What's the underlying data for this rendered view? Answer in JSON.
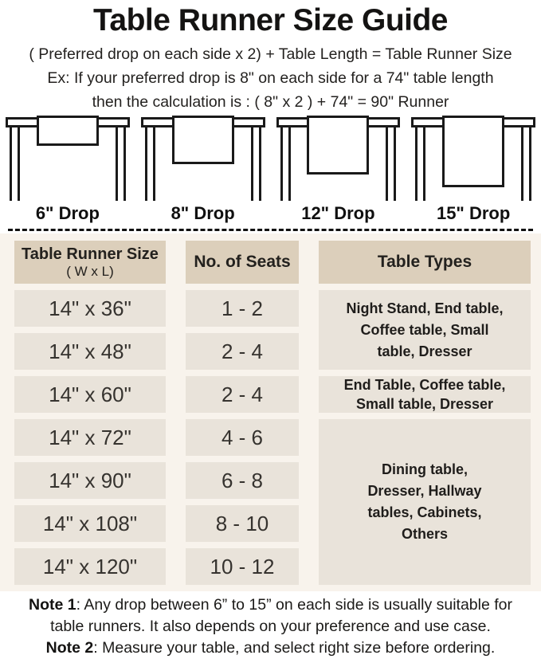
{
  "title": "Table Runner Size Guide",
  "formula": "( Preferred drop on each side x 2) + Table Length = Table Runner Size",
  "example_line1": "Ex: If your preferred drop is 8\" on each side for a 74\" table length",
  "example_line2": "then the calculation is : ( 8\" x 2 ) + 74\" = 90\" Runner",
  "illustrations": [
    {
      "label": "6\" Drop"
    },
    {
      "label": "8\" Drop"
    },
    {
      "label": "12\" Drop"
    },
    {
      "label": "15\" Drop"
    }
  ],
  "size_table": {
    "headers": {
      "col1_line1": "Table Runner Size",
      "col1_line2": "( W x L)",
      "col2": "No. of Seats",
      "col3": "Table Types"
    },
    "rows": [
      {
        "size": "14\" x 36\"",
        "seats": "1 - 2"
      },
      {
        "size": "14\" x 48\"",
        "seats": "2 - 4"
      },
      {
        "size": "14\" x 60\"",
        "seats": "2 - 4"
      },
      {
        "size": "14\" x 72\"",
        "seats": "4 - 6"
      },
      {
        "size": "14\" x 90\"",
        "seats": "6 - 8"
      },
      {
        "size": "14\" x 108\"",
        "seats": "8 - 10"
      },
      {
        "size": "14\" x 120\"",
        "seats": "10 - 12"
      }
    ],
    "table_types": [
      {
        "rows_spanned": "1-2",
        "text": "Night Stand, End table,\nCoffee table, Small\ntable, Dresser"
      },
      {
        "rows_spanned": "3",
        "text": "End Table, Coffee table,\nSmall table, Dresser"
      },
      {
        "rows_spanned": "4-7",
        "text": "Dining table,\nDresser, Hallway\ntables, Cabinets,\nOthers"
      }
    ]
  },
  "notes": [
    {
      "label": "Note 1",
      "text": ": Any drop between 6” to 15” on each side is usually suitable for\ntable runners. It also depends on your preference and use case."
    },
    {
      "label": "Note 2",
      "text": ": Measure your table, and select right size before ordering."
    }
  ],
  "colors": {
    "header_cell": "#dccfbb",
    "data_cell": "#e9e3da",
    "table_section_bg": "#f8f3ec",
    "ink": "#1a1a1a"
  }
}
